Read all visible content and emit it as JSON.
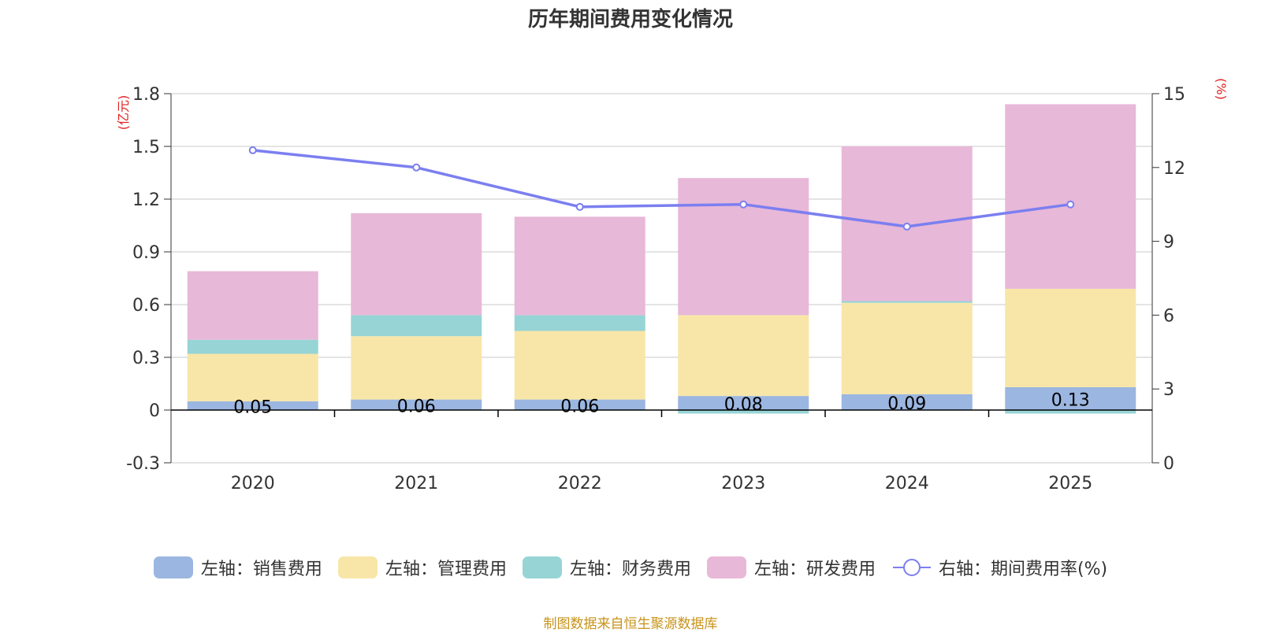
{
  "colors": {
    "sales": "#9bb6e0",
    "admin": "#f8e6a8",
    "finance": "#97d4d5",
    "rd": "#e8b8d8",
    "rate": "#7b7ff0",
    "axis_unit": "#e02020",
    "source": "#c8931a",
    "grid": "#c8c8c8",
    "text": "#333333"
  },
  "chart_data": {
    "type": "bar",
    "title": "历年期间费用变化情况",
    "categories": [
      "2020",
      "2021",
      "2022",
      "2023",
      "2024",
      "2025"
    ],
    "series": [
      {
        "name": "左轴：销售费用",
        "key": "sales",
        "axis": "left",
        "values": [
          0.05,
          0.06,
          0.06,
          0.08,
          0.09,
          0.13
        ],
        "labels": [
          "0.05",
          "0.06",
          "0.06",
          "0.08",
          "0.09",
          "0.13"
        ]
      },
      {
        "name": "左轴：管理费用",
        "key": "admin",
        "axis": "left",
        "values": [
          0.27,
          0.36,
          0.39,
          0.46,
          0.52,
          0.56
        ]
      },
      {
        "name": "左轴：财务费用",
        "key": "finance",
        "axis": "left",
        "values": [
          0.08,
          0.12,
          0.09,
          -0.02,
          0.01,
          -0.02
        ]
      },
      {
        "name": "左轴：研发费用",
        "key": "rd",
        "axis": "left",
        "values": [
          0.39,
          0.58,
          0.56,
          0.78,
          0.88,
          1.05
        ]
      },
      {
        "name": "右轴：期间费用率(%)",
        "key": "rate",
        "axis": "right",
        "type": "line",
        "values": [
          12.7,
          12.0,
          10.4,
          10.5,
          9.6,
          10.5
        ]
      }
    ],
    "left_axis": {
      "unit": "(亿元)",
      "range": [
        -0.3,
        1.8
      ],
      "ticks": [
        "1.8",
        "1.5",
        "1.2",
        "0.9",
        "0.6",
        "0.3",
        "0",
        "-0.3"
      ]
    },
    "right_axis": {
      "unit": "(%)",
      "range": [
        0,
        15
      ],
      "ticks": [
        "15",
        "12",
        "9",
        "6",
        "3",
        "0"
      ]
    },
    "legend_position": "bottom",
    "grid": true
  },
  "source": "制图数据来自恒生聚源数据库"
}
